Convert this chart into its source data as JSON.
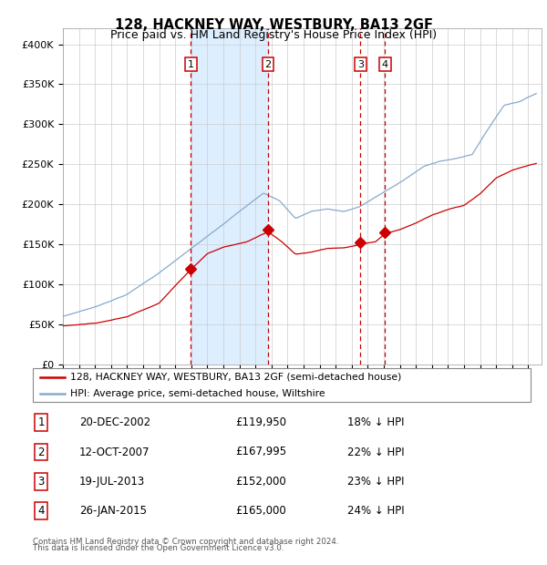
{
  "title1": "128, HACKNEY WAY, WESTBURY, BA13 2GF",
  "title2": "Price paid vs. HM Land Registry's House Price Index (HPI)",
  "ylabel_ticks": [
    "£0",
    "£50K",
    "£100K",
    "£150K",
    "£200K",
    "£250K",
    "£300K",
    "£350K",
    "£400K"
  ],
  "ytick_values": [
    0,
    50000,
    100000,
    150000,
    200000,
    250000,
    300000,
    350000,
    400000
  ],
  "ylim": [
    0,
    420000
  ],
  "xlim_start": 1995.0,
  "xlim_end": 2024.83,
  "red_line_color": "#cc0000",
  "blue_line_color": "#88aacc",
  "shade_color": "#ddeeff",
  "vline_color": "#cc0000",
  "transactions": [
    {
      "label": "1",
      "year_dec": 2002.97,
      "price": 119950,
      "date": "20-DEC-2002",
      "pct": "18% ↓ HPI"
    },
    {
      "label": "2",
      "year_dec": 2007.79,
      "price": 167995,
      "date": "12-OCT-2007",
      "pct": "22% ↓ HPI"
    },
    {
      "label": "3",
      "year_dec": 2013.55,
      "price": 152000,
      "date": "19-JUL-2013",
      "pct": "23% ↓ HPI"
    },
    {
      "label": "4",
      "year_dec": 2015.07,
      "price": 165000,
      "date": "26-JAN-2015",
      "pct": "24% ↓ HPI"
    }
  ],
  "legend_red_label": "128, HACKNEY WAY, WESTBURY, BA13 2GF (semi-detached house)",
  "legend_blue_label": "HPI: Average price, semi-detached house, Wiltshire",
  "footnote1": "Contains HM Land Registry data © Crown copyright and database right 2024.",
  "footnote2": "This data is licensed under the Open Government Licence v3.0.",
  "table_rows": [
    [
      "1",
      "20-DEC-2002",
      "£119,950",
      "18% ↓ HPI"
    ],
    [
      "2",
      "12-OCT-2007",
      "£167,995",
      "22% ↓ HPI"
    ],
    [
      "3",
      "19-JUL-2013",
      "£152,000",
      "23% ↓ HPI"
    ],
    [
      "4",
      "26-JAN-2015",
      "£165,000",
      "24% ↓ HPI"
    ]
  ]
}
